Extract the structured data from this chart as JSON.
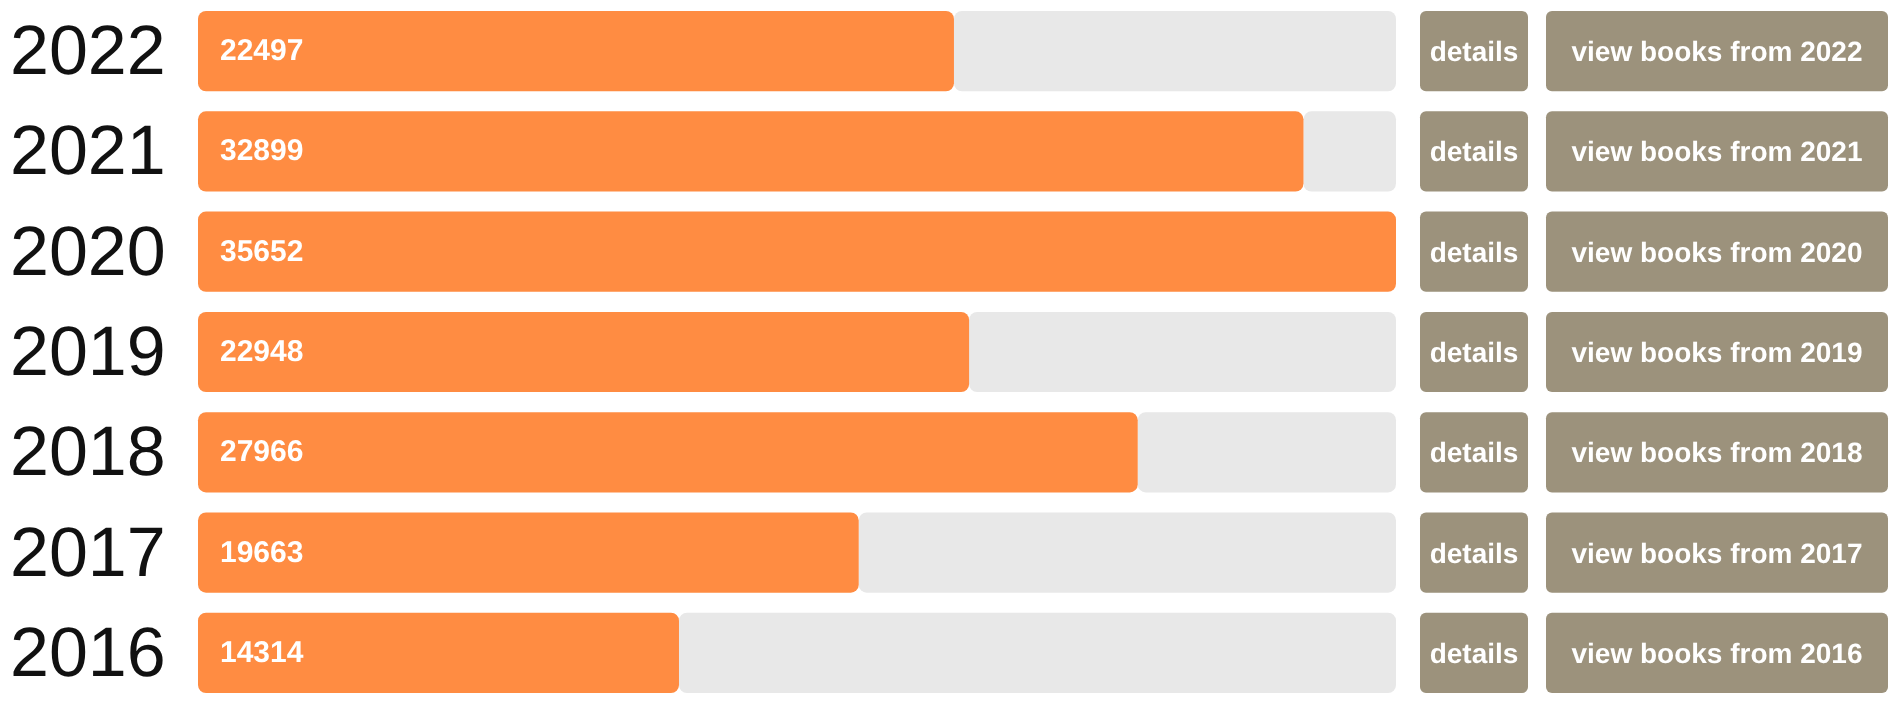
{
  "chart_data": {
    "type": "bar",
    "orientation": "horizontal",
    "categories": [
      "2022",
      "2021",
      "2020",
      "2019",
      "2018",
      "2017",
      "2016"
    ],
    "values": [
      22497,
      32899,
      35652,
      22948,
      27966,
      19663,
      14314
    ],
    "color": "#ff8c42",
    "data_labels": true,
    "annotations": [
      "details",
      "view books from 2022",
      "details",
      "view books from 2021",
      "details",
      "view books from 2020",
      "details",
      "view books from 2019",
      "details",
      "view books from 2018",
      "details",
      "view books from 2017",
      "details",
      "view books from 2016"
    ]
  }
}
